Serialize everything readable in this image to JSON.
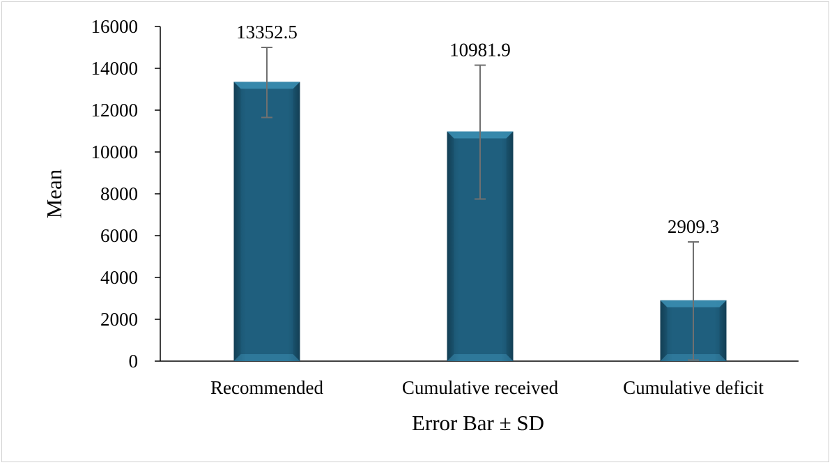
{
  "chart_data": {
    "type": "bar",
    "categories": [
      "Recommended",
      "Cumulative received",
      "Cumulative deficit"
    ],
    "values": [
      13352.5,
      10981.9,
      2909.3
    ],
    "data_labels": [
      "13352.5",
      "10981.9",
      "2909.3"
    ],
    "error_bars": {
      "lower": [
        11650,
        7750,
        50
      ],
      "upper": [
        15000,
        14150,
        5700
      ]
    },
    "xlabel": "Error Bar ± SD",
    "ylabel": "Mean",
    "ylim": [
      0,
      16000
    ],
    "yticks": [
      0,
      2000,
      4000,
      6000,
      8000,
      10000,
      12000,
      14000,
      16000
    ],
    "grid": false,
    "legend": "none",
    "colors": {
      "bar": "#1f5f7e",
      "bar_highlight": "#3a8db0",
      "bar_shadow": "#123e54",
      "error_bar": "#707070",
      "axis": "#000000"
    }
  }
}
